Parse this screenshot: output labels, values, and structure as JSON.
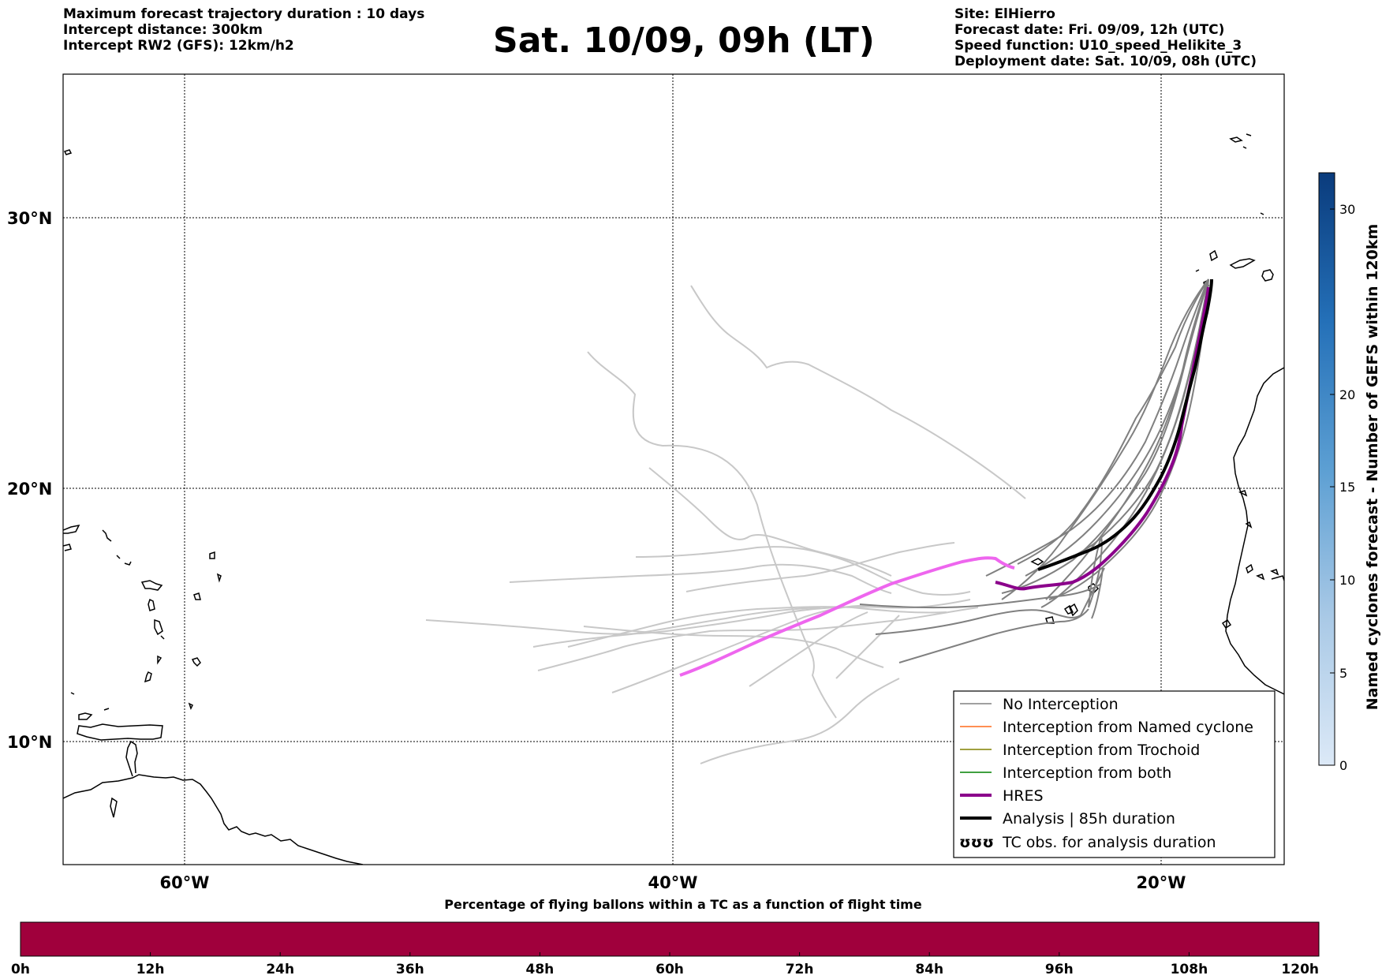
{
  "header": {
    "left_lines": [
      "Maximum forecast trajectory duration : 10 days",
      "Intercept distance: 300km",
      "Intercept RW2 (GFS):  12km/h2"
    ],
    "title": "Sat. 10/09, 09h (LT)",
    "right_lines": [
      "Site: ElHierro",
      "Forecast date: Fri. 09/09, 12h (UTC)",
      "Speed function: U10_speed_Helikite_3",
      "Deployment date: Sat. 10/09, 08h (UTC)"
    ]
  },
  "map": {
    "lat_labels": [
      "30°N",
      "20°N",
      "10°N"
    ],
    "lon_labels": [
      "60°W",
      "40°W",
      "20°W"
    ],
    "colors": {
      "no_interception": "#808080",
      "named_cyclone": "#ff6a1a",
      "trochoid": "#808000",
      "both": "#008000",
      "hres": "#8b008b",
      "hres_early": "#ee66ee",
      "analysis": "#000000",
      "light_traj": "#c8c8c8"
    }
  },
  "legend": {
    "items": [
      {
        "label": "No Interception"
      },
      {
        "label": "Interception from Named cyclone"
      },
      {
        "label": "Interception from Trochoid"
      },
      {
        "label": "Interception from both"
      },
      {
        "label": "HRES"
      },
      {
        "label": "Analysis | 85h duration"
      },
      {
        "label": "TC obs. for analysis duration",
        "symbol": "ʊʊʊ"
      }
    ]
  },
  "colorbar": {
    "label": "Named cyclones forecast - Number of GEFS within 120km",
    "ticks": [
      "0",
      "5",
      "10",
      "15",
      "20",
      "30"
    ]
  },
  "timebar": {
    "title": "Percentage of flying ballons within a TC as a function of flight time",
    "ticks": [
      "0h",
      "12h",
      "24h",
      "36h",
      "48h",
      "60h",
      "72h",
      "84h",
      "96h",
      "108h",
      "120h"
    ],
    "color": "#a0003c"
  }
}
